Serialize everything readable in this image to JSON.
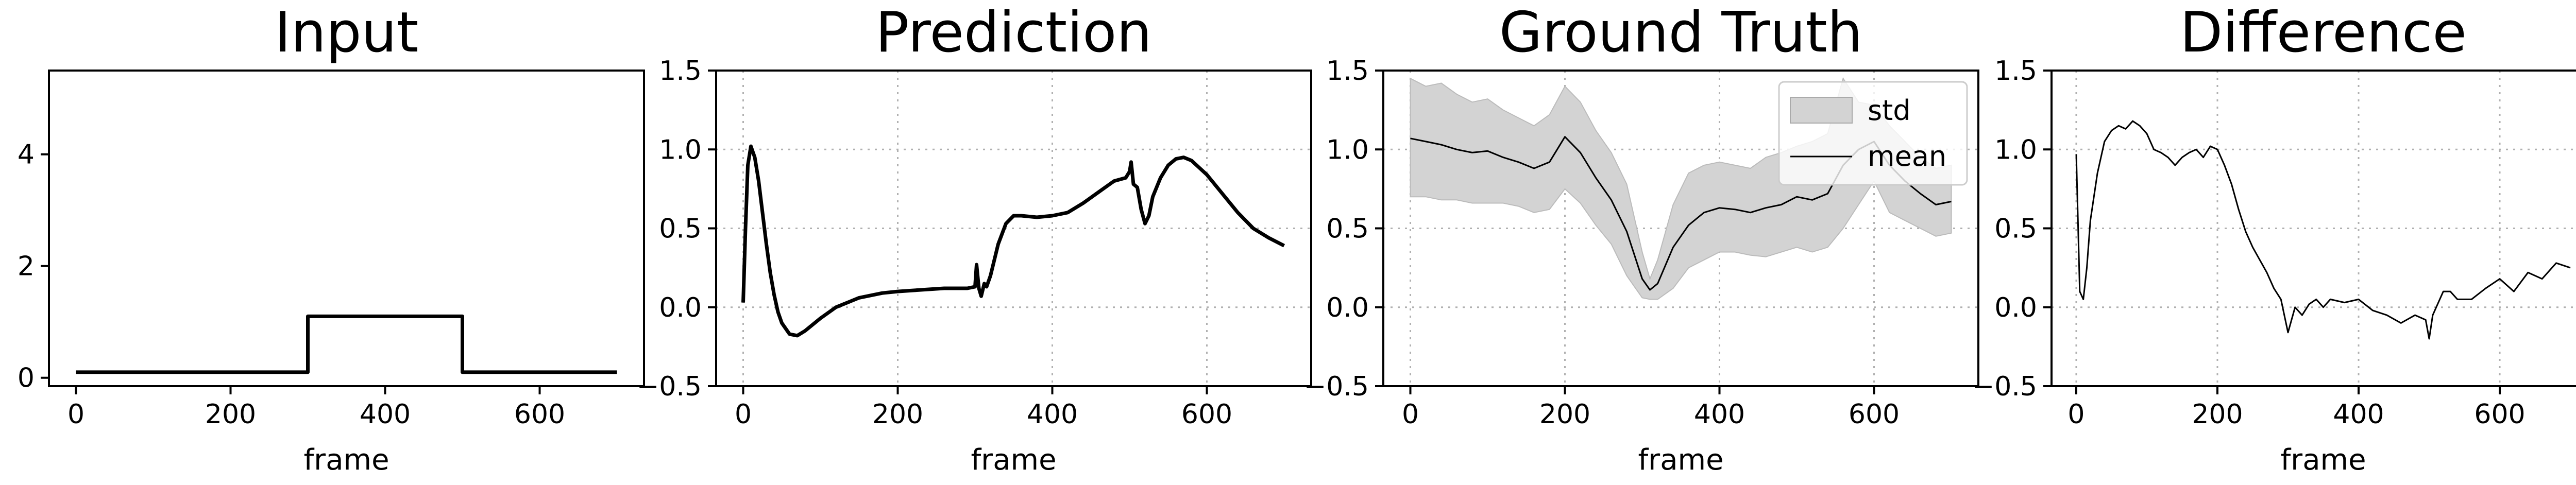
{
  "chart_data": [
    {
      "type": "line",
      "title": "Input",
      "xlabel": "frame",
      "ylabel": "",
      "xlim": [
        -35,
        735
      ],
      "ylim": [
        -0.15,
        5.5
      ],
      "xticks": [
        0,
        200,
        400,
        600
      ],
      "yticks": [
        0,
        2,
        4
      ],
      "ytick_labels": [
        "0",
        "2",
        "4"
      ],
      "grid": false,
      "legend": null,
      "series": [
        {
          "color": "#000000",
          "x": [
            0,
            300,
            300,
            500,
            500,
            700
          ],
          "y": [
            0.1,
            0.1,
            1.1,
            1.1,
            0.1,
            0.1
          ]
        }
      ]
    },
    {
      "type": "line",
      "title": "Prediction",
      "xlabel": "frame",
      "ylabel": "",
      "xlim": [
        -35,
        735
      ],
      "ylim": [
        -0.5,
        1.5
      ],
      "xticks": [
        0,
        200,
        400,
        600
      ],
      "yticks": [
        -0.5,
        0.0,
        0.5,
        1.0,
        1.5
      ],
      "ytick_labels": [
        "−0.5",
        "0.0",
        "0.5",
        "1.0",
        "1.5"
      ],
      "grid": true,
      "legend": null,
      "series": [
        {
          "color": "#000000",
          "x": [
            0,
            3,
            6,
            10,
            15,
            20,
            25,
            30,
            35,
            40,
            45,
            50,
            60,
            70,
            80,
            100,
            120,
            150,
            180,
            200,
            230,
            260,
            290,
            300,
            302,
            305,
            308,
            312,
            315,
            320,
            325,
            330,
            340,
            350,
            360,
            380,
            400,
            420,
            440,
            460,
            480,
            495,
            500,
            502,
            505,
            510,
            515,
            520,
            525,
            530,
            540,
            550,
            560,
            570,
            580,
            600,
            620,
            640,
            660,
            680,
            700
          ],
          "y": [
            0.03,
            0.5,
            0.9,
            1.02,
            0.95,
            0.8,
            0.6,
            0.4,
            0.22,
            0.08,
            -0.03,
            -0.1,
            -0.17,
            -0.18,
            -0.15,
            -0.07,
            0.0,
            0.06,
            0.09,
            0.1,
            0.11,
            0.12,
            0.12,
            0.13,
            0.27,
            0.12,
            0.07,
            0.15,
            0.13,
            0.2,
            0.3,
            0.4,
            0.53,
            0.58,
            0.58,
            0.57,
            0.58,
            0.6,
            0.66,
            0.73,
            0.8,
            0.82,
            0.86,
            0.92,
            0.78,
            0.76,
            0.62,
            0.53,
            0.58,
            0.7,
            0.82,
            0.9,
            0.94,
            0.95,
            0.93,
            0.84,
            0.72,
            0.6,
            0.5,
            0.44,
            0.39
          ]
        }
      ]
    },
    {
      "type": "area",
      "title": "Ground Truth",
      "xlabel": "frame",
      "ylabel": "",
      "xlim": [
        -35,
        735
      ],
      "ylim": [
        -0.5,
        1.5
      ],
      "xticks": [
        0,
        200,
        400,
        600
      ],
      "yticks": [
        -0.5,
        0.0,
        0.5,
        1.0,
        1.5
      ],
      "ytick_labels": [
        "−0.5",
        "0.0",
        "0.5",
        "1.0",
        "1.5"
      ],
      "grid": true,
      "legend": {
        "position": "top-right",
        "entries": [
          "std",
          "mean"
        ]
      },
      "x": [
        0,
        20,
        40,
        60,
        80,
        100,
        120,
        140,
        160,
        180,
        200,
        220,
        240,
        260,
        280,
        300,
        310,
        320,
        340,
        360,
        380,
        400,
        420,
        440,
        460,
        480,
        500,
        520,
        540,
        560,
        580,
        600,
        620,
        640,
        660,
        680,
        700
      ],
      "series": [
        {
          "name": "mean",
          "color": "#000000",
          "y": [
            1.07,
            1.05,
            1.03,
            1.0,
            0.98,
            0.99,
            0.95,
            0.92,
            0.88,
            0.92,
            1.08,
            0.98,
            0.82,
            0.68,
            0.48,
            0.18,
            0.11,
            0.15,
            0.38,
            0.52,
            0.6,
            0.63,
            0.62,
            0.6,
            0.63,
            0.65,
            0.7,
            0.68,
            0.72,
            0.9,
            1.0,
            1.05,
            0.9,
            0.8,
            0.72,
            0.65,
            0.67
          ]
        },
        {
          "name": "std",
          "color": "#d3d3d3",
          "upper": [
            1.45,
            1.4,
            1.42,
            1.35,
            1.3,
            1.32,
            1.25,
            1.2,
            1.15,
            1.22,
            1.4,
            1.3,
            1.12,
            0.98,
            0.78,
            0.35,
            0.18,
            0.3,
            0.65,
            0.85,
            0.9,
            0.92,
            0.9,
            0.88,
            0.95,
            0.98,
            1.02,
            1.05,
            1.1,
            1.45,
            1.3,
            1.28,
            1.15,
            1.05,
            0.95,
            0.88,
            0.9
          ],
          "lower": [
            0.7,
            0.7,
            0.68,
            0.68,
            0.66,
            0.66,
            0.66,
            0.64,
            0.6,
            0.62,
            0.75,
            0.66,
            0.52,
            0.4,
            0.2,
            0.06,
            0.05,
            0.05,
            0.12,
            0.25,
            0.3,
            0.35,
            0.35,
            0.33,
            0.32,
            0.35,
            0.38,
            0.35,
            0.38,
            0.5,
            0.65,
            0.8,
            0.6,
            0.55,
            0.5,
            0.45,
            0.47
          ]
        }
      ]
    },
    {
      "type": "line",
      "title": "Difference",
      "xlabel": "frame",
      "ylabel": "",
      "xlim": [
        -35,
        735
      ],
      "ylim": [
        -0.5,
        1.5
      ],
      "xticks": [
        0,
        200,
        400,
        600
      ],
      "yticks": [
        -0.5,
        0.0,
        0.5,
        1.0,
        1.5
      ],
      "ytick_labels": [
        "−0.5",
        "0.0",
        "0.5",
        "1.0",
        "1.5"
      ],
      "grid": true,
      "legend": null,
      "series": [
        {
          "color": "#000000",
          "x": [
            0,
            5,
            10,
            15,
            20,
            30,
            40,
            50,
            60,
            70,
            80,
            90,
            100,
            110,
            120,
            130,
            140,
            150,
            160,
            170,
            180,
            190,
            200,
            210,
            220,
            230,
            240,
            250,
            260,
            270,
            280,
            290,
            300,
            310,
            320,
            330,
            340,
            350,
            360,
            380,
            400,
            420,
            440,
            460,
            480,
            495,
            500,
            505,
            510,
            520,
            530,
            540,
            560,
            580,
            600,
            620,
            640,
            660,
            680,
            700
          ],
          "y": [
            0.97,
            0.1,
            0.05,
            0.25,
            0.55,
            0.85,
            1.05,
            1.12,
            1.15,
            1.13,
            1.18,
            1.15,
            1.1,
            1.0,
            0.98,
            0.95,
            0.9,
            0.95,
            0.98,
            1.0,
            0.95,
            1.02,
            1.0,
            0.9,
            0.78,
            0.62,
            0.48,
            0.38,
            0.3,
            0.22,
            0.12,
            0.05,
            -0.16,
            0.0,
            -0.05,
            0.02,
            0.05,
            0.0,
            0.05,
            0.03,
            0.05,
            -0.02,
            -0.05,
            -0.1,
            -0.05,
            -0.08,
            -0.2,
            -0.05,
            0.0,
            0.1,
            0.1,
            0.05,
            0.05,
            0.12,
            0.18,
            0.1,
            0.22,
            0.18,
            0.28,
            0.25
          ]
        }
      ]
    }
  ]
}
